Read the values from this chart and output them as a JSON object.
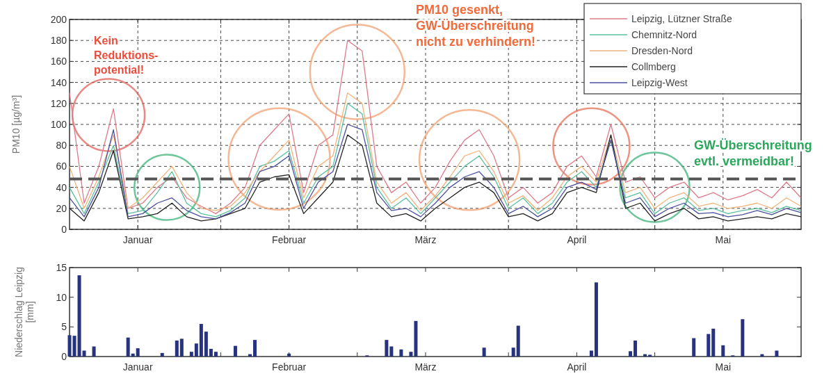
{
  "chart_data": [
    {
      "type": "line",
      "ylabel": "PM10 [µg/m³]",
      "xlim": [
        "--01-01",
        "--05-31"
      ],
      "ylim": [
        0,
        200
      ],
      "yticks": [
        0,
        20,
        40,
        60,
        80,
        100,
        120,
        140,
        160,
        180,
        200
      ],
      "xticks": [
        {
          "value": "--01-15",
          "label": "Januar"
        },
        {
          "value": "--02-01",
          "label": null
        },
        {
          "value": "--02-15",
          "label": "Februar"
        },
        {
          "value": "--03-01",
          "label": null
        },
        {
          "value": "--03-15",
          "label": "März"
        },
        {
          "value": "--04-01",
          "label": null
        },
        {
          "value": "--04-15",
          "label": "April"
        },
        {
          "value": "--05-01",
          "label": null
        },
        {
          "value": "--05-15",
          "label": "Mai"
        }
      ],
      "grid": true,
      "legend": "top right",
      "x": [
        "--01-01",
        "--01-04",
        "--01-07",
        "--01-10",
        "--01-13",
        "--01-16",
        "--01-19",
        "--01-22",
        "--01-25",
        "--01-28",
        "--01-31",
        "--02-03",
        "--02-06",
        "--02-09",
        "--02-12",
        "--02-15",
        "--02-18",
        "--02-21",
        "--02-24",
        "--02-27",
        "--03-02",
        "--03-05",
        "--03-08",
        "--03-11",
        "--03-14",
        "--03-17",
        "--03-20",
        "--03-23",
        "--03-26",
        "--03-29",
        "--04-01",
        "--04-04",
        "--04-07",
        "--04-10",
        "--04-13",
        "--04-16",
        "--04-19",
        "--04-22",
        "--04-25",
        "--04-28",
        "--05-01",
        "--05-04",
        "--05-07",
        "--05-10",
        "--05-13",
        "--05-16",
        "--05-19",
        "--05-22",
        "--05-25",
        "--05-28",
        "--05-31"
      ],
      "series": [
        {
          "name": "Leipzig, Lützner Straße",
          "color": "#e07a8a",
          "values": [
            130,
            25,
            60,
            115,
            20,
            25,
            40,
            50,
            30,
            22,
            15,
            25,
            40,
            80,
            95,
            110,
            35,
            80,
            90,
            180,
            170,
            60,
            35,
            45,
            25,
            40,
            65,
            85,
            95,
            70,
            30,
            40,
            25,
            35,
            60,
            70,
            50,
            100,
            45,
            50,
            30,
            40,
            45,
            30,
            35,
            28,
            32,
            38,
            30,
            45,
            30
          ]
        },
        {
          "name": "Chemnitz-Nord",
          "color": "#5bbf9f",
          "values": [
            40,
            15,
            45,
            80,
            15,
            18,
            35,
            55,
            25,
            15,
            12,
            18,
            30,
            60,
            65,
            75,
            25,
            50,
            60,
            120,
            110,
            40,
            20,
            30,
            15,
            30,
            45,
            60,
            70,
            50,
            20,
            30,
            15,
            25,
            45,
            55,
            40,
            85,
            30,
            35,
            15,
            25,
            30,
            18,
            20,
            15,
            18,
            20,
            16,
            22,
            18
          ]
        },
        {
          "name": "Dresden-Nord",
          "color": "#f2b27a",
          "values": [
            60,
            20,
            50,
            90,
            20,
            30,
            45,
            60,
            35,
            20,
            18,
            22,
            35,
            55,
            70,
            85,
            30,
            60,
            70,
            130,
            120,
            45,
            25,
            35,
            18,
            32,
            50,
            70,
            75,
            55,
            25,
            32,
            18,
            30,
            50,
            60,
            45,
            90,
            35,
            40,
            20,
            30,
            35,
            22,
            25,
            20,
            22,
            25,
            20,
            30,
            22
          ]
        },
        {
          "name": "Collmberg",
          "color": "#222222",
          "values": [
            20,
            8,
            35,
            75,
            10,
            12,
            15,
            25,
            12,
            8,
            10,
            15,
            20,
            45,
            50,
            52,
            15,
            30,
            45,
            90,
            80,
            25,
            12,
            15,
            8,
            20,
            30,
            40,
            45,
            35,
            12,
            15,
            8,
            15,
            35,
            40,
            35,
            90,
            20,
            25,
            8,
            15,
            20,
            10,
            12,
            8,
            10,
            12,
            10,
            15,
            12
          ]
        },
        {
          "name": "Leipzig-West",
          "color": "#4b4f9e",
          "values": [
            30,
            12,
            40,
            95,
            12,
            15,
            25,
            30,
            18,
            12,
            10,
            16,
            25,
            55,
            60,
            70,
            20,
            45,
            55,
            100,
            95,
            35,
            18,
            20,
            12,
            25,
            40,
            50,
            55,
            40,
            15,
            22,
            12,
            20,
            40,
            45,
            38,
            85,
            25,
            30,
            12,
            20,
            25,
            15,
            16,
            12,
            14,
            18,
            14,
            20,
            16
          ]
        }
      ],
      "ref_lines": [
        {
          "axis": "y",
          "value": 48,
          "color": "#555555",
          "line_style": "dashed"
        }
      ],
      "annotations": [
        "Kein\nReduktions-\npotential!",
        "PM10 gesenkt,\nGW-Überschreitung\nnicht zu verhindern!",
        "GW-Überschreitung\nevtl. vermeidbar!"
      ]
    },
    {
      "type": "bar",
      "ylabel": "Niederschlag Leipzig [mm]",
      "xlim": [
        "--01-01",
        "--05-31"
      ],
      "ylim": [
        0,
        15
      ],
      "yticks": [
        0,
        5,
        10,
        15
      ],
      "xticks": [
        {
          "value": "--01-15",
          "label": "Januar"
        },
        {
          "value": "--02-01",
          "label": null
        },
        {
          "value": "--02-15",
          "label": "Februar"
        },
        {
          "value": "--03-01",
          "label": null
        },
        {
          "value": "--03-15",
          "label": "März"
        },
        {
          "value": "--04-01",
          "label": null
        },
        {
          "value": "--04-15",
          "label": "April"
        },
        {
          "value": "--05-01",
          "label": null
        },
        {
          "value": "--05-15",
          "label": "Mai"
        }
      ],
      "color": "#27337f",
      "x": [
        "--01-01",
        "--01-02",
        "--01-03",
        "--01-04",
        "--01-06",
        "--01-13",
        "--01-14",
        "--01-15",
        "--01-20",
        "--01-23",
        "--01-24",
        "--01-26",
        "--01-27",
        "--01-28",
        "--01-29",
        "--01-30",
        "--01-31",
        "--02-04",
        "--02-07",
        "--02-08",
        "--02-15",
        "--03-03",
        "--03-07",
        "--03-08",
        "--03-10",
        "--03-12",
        "--03-13",
        "--03-27",
        "--04-02",
        "--04-03",
        "--04-18",
        "--04-19",
        "--04-26",
        "--04-27",
        "--04-29",
        "--04-30",
        "--05-09",
        "--05-12",
        "--05-13",
        "--05-15",
        "--05-17",
        "--05-19",
        "--05-23",
        "--05-26"
      ],
      "values": [
        3.6,
        3.5,
        13.7,
        1.0,
        1.7,
        3.2,
        0.5,
        1.4,
        0.6,
        2.7,
        3.0,
        0.8,
        2.2,
        5.5,
        4.2,
        1.3,
        0.8,
        1.8,
        0.4,
        2.8,
        0.5,
        0.2,
        2.8,
        1.7,
        1.2,
        0.8,
        6.0,
        1.5,
        1.5,
        5.2,
        1.0,
        12.5,
        0.9,
        2.7,
        0.4,
        0.3,
        3.1,
        3.8,
        4.7,
        1.9,
        0.2,
        6.3,
        0.4,
        1.0
      ]
    }
  ]
}
